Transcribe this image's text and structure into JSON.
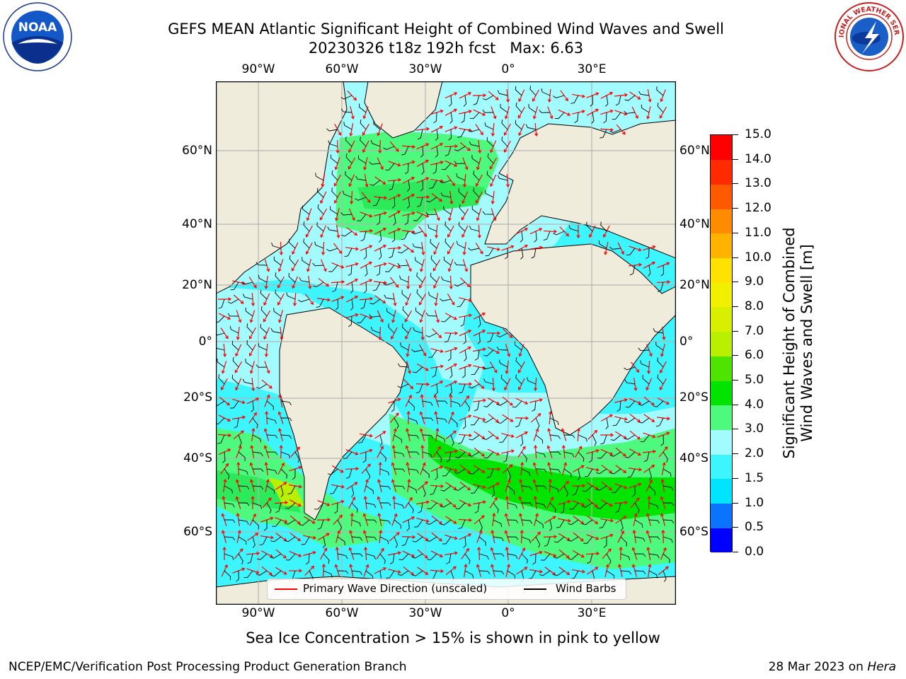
{
  "title": {
    "line1": "GEFS MEAN Atlantic Significant Height of Combined Wind Waves and Swell",
    "line2": "20230326 t18z 192h fcst   Max: 6.63"
  },
  "logos": {
    "left": {
      "text": "NOAA",
      "icon": "noaa-logo"
    },
    "right": {
      "text": "NATIONAL WEATHER SERVICE",
      "icon": "nws-logo"
    }
  },
  "axes": {
    "top_lon_labels": [
      "90°W",
      "60°W",
      "30°W",
      "0°",
      "30°E"
    ],
    "bottom_lon_labels": [
      "90°W",
      "60°W",
      "30°W",
      "0°",
      "30°E"
    ],
    "left_lat_labels": [
      "60°N",
      "40°N",
      "20°N",
      "0°",
      "20°S",
      "40°S",
      "60°S"
    ],
    "right_lat_labels": [
      "60°N",
      "40°N",
      "20°N",
      "0°",
      "20°S",
      "40°S",
      "60°S"
    ]
  },
  "colorbar": {
    "title_line1": "Significant Height of Combined",
    "title_line2": "Wind Waves and Swell [m]",
    "tick_labels": [
      "0.0",
      "0.5",
      "1.0",
      "1.5",
      "2.0",
      "3.0",
      "4.0",
      "5.0",
      "6.0",
      "7.0",
      "8.0",
      "9.0",
      "10.0",
      "11.0",
      "12.0",
      "13.0",
      "14.0",
      "15.0"
    ],
    "colors": [
      "#0000ff",
      "#0a74ff",
      "#00e4ff",
      "#3cf5ff",
      "#a2fcff",
      "#4dfa7e",
      "#00e400",
      "#4fe400",
      "#b8f000",
      "#d8f000",
      "#f0f000",
      "#ffe200",
      "#ffb300",
      "#ff8c00",
      "#ff5a00",
      "#ff2a00",
      "#ff0000"
    ]
  },
  "legend": {
    "primary_wave": "Primary Wave Direction (unscaled)",
    "wind_barbs": "Wind Barbs",
    "primary_wave_color": "#ff0000",
    "wind_barb_color": "#000000"
  },
  "subtitle": "Sea Ice Concentration > 15% is shown in pink to yellow",
  "footer": {
    "left": "NCEP/EMC/Verification Post Processing Product Generation Branch",
    "right_date": "28 Mar 2023 on ",
    "right_machine": "Hera"
  },
  "colors": {
    "land": "#efecdc",
    "coast": "#000000",
    "grid": "#b4b4b4"
  }
}
